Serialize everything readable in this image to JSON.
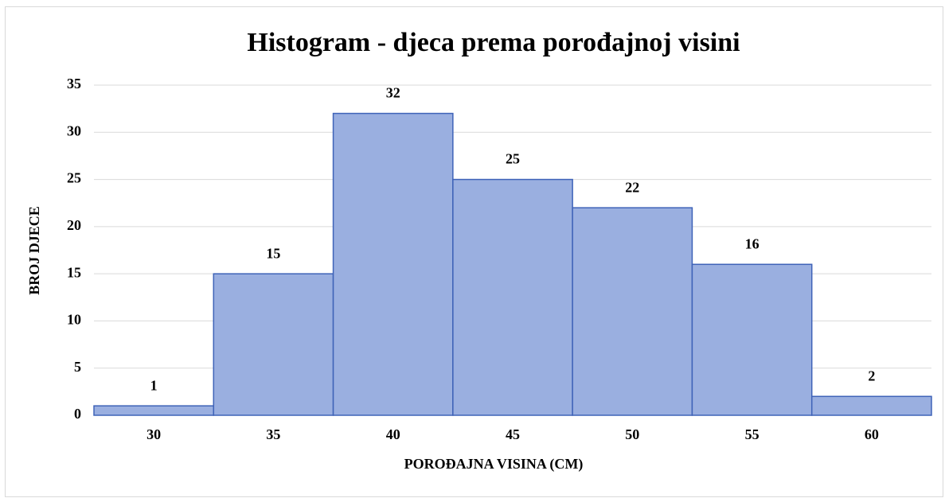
{
  "chart_data": {
    "type": "bar",
    "title": "Histogram - djeca prema porođajnoj visini",
    "x_label": "POROĐAJNA VISINA (CM)",
    "y_label": "BROJ DJECE",
    "categories": [
      30,
      35,
      40,
      45,
      50,
      55,
      60
    ],
    "values": [
      1,
      15,
      32,
      25,
      22,
      16,
      2
    ],
    "color": "#9aafe0",
    "edge_color": "#3f63b8",
    "ylim": [
      0,
      35
    ],
    "yticks": [
      0,
      5,
      10,
      15,
      20,
      25,
      30,
      35
    ],
    "grid": true
  }
}
